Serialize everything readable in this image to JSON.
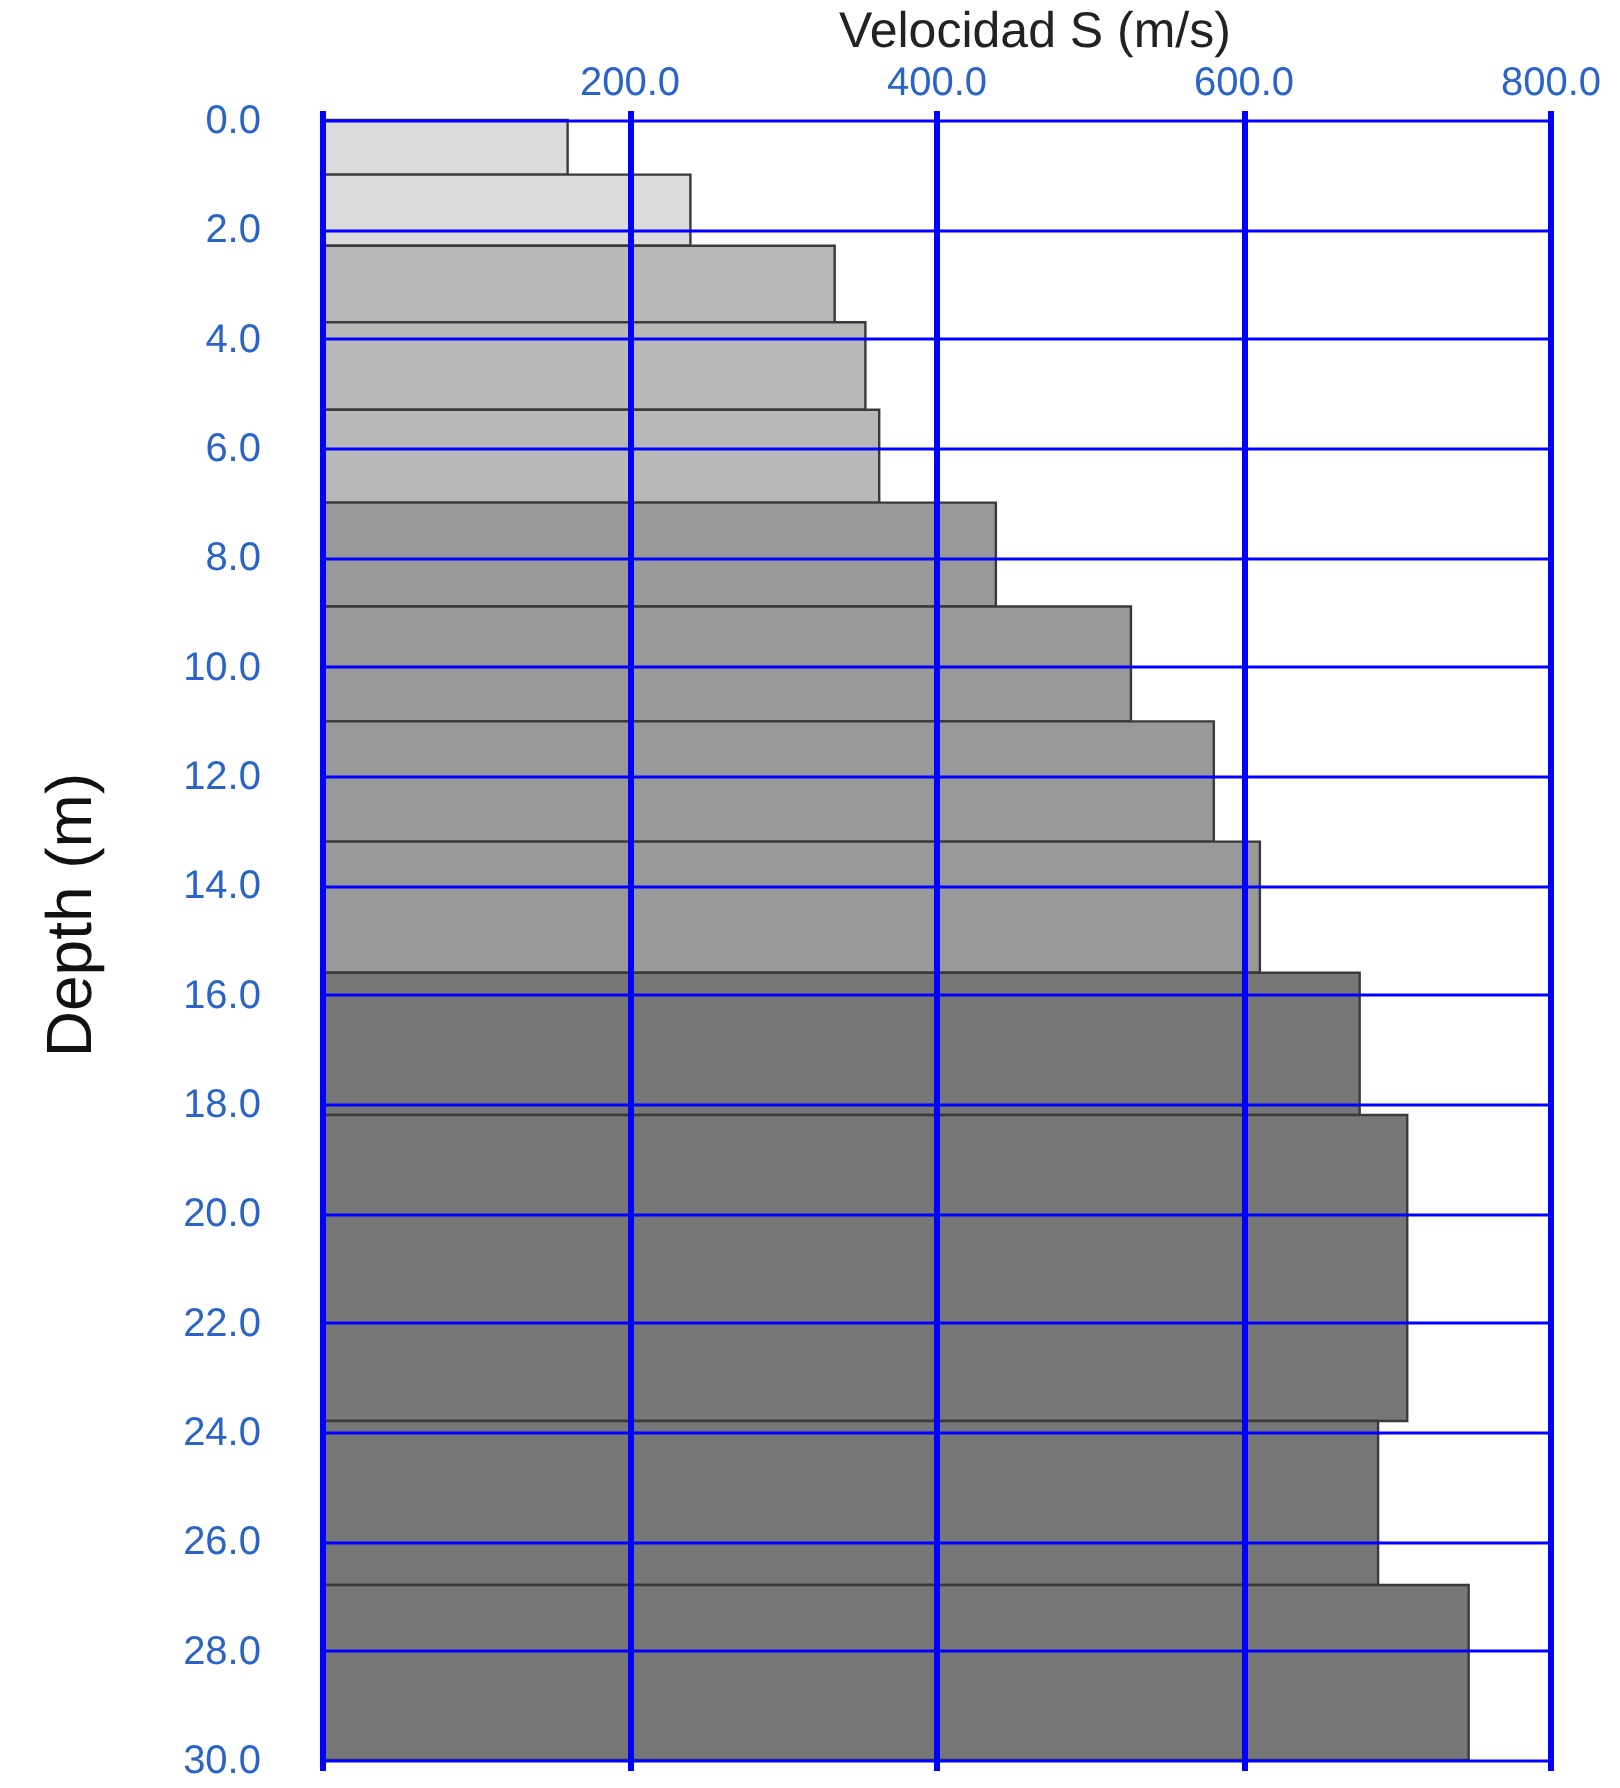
{
  "chart_data": {
    "type": "histogram",
    "orientation": "horizontal",
    "xlabel": "Velocidad S (m/s)",
    "ylabel": "Depth (m)",
    "bins": [
      0,
      1.0,
      2.3,
      3.7,
      5.3,
      7.0,
      8.9,
      11.0,
      13.2,
      15.6,
      18.2,
      23.8,
      26.8,
      30
    ],
    "values": [
      160,
      240,
      334,
      354,
      363,
      439,
      527,
      581,
      611,
      676,
      707,
      688,
      747
    ],
    "colors": [
      "#dbdbdb",
      "#dbdbdb",
      "#b8b8b8",
      "#b8b8b8",
      "#b8b8b8",
      "#999999",
      "#999999",
      "#999999",
      "#999999",
      "#777777",
      "#777777",
      "#777777",
      "#777777"
    ],
    "xlim": [
      0,
      800
    ],
    "xticks": [
      {
        "value": 0,
        "label": null
      },
      {
        "value": 200,
        "label": "200.0"
      },
      {
        "value": 400,
        "label": "400.0"
      },
      {
        "value": 600,
        "label": "600.0"
      },
      {
        "value": 800,
        "label": "800.0"
      }
    ],
    "ylim": [
      30,
      0
    ],
    "yticks": [
      {
        "value": 0,
        "label": "0.0"
      },
      {
        "value": 2,
        "label": "2.0"
      },
      {
        "value": 4,
        "label": "4.0"
      },
      {
        "value": 6,
        "label": "6.0"
      },
      {
        "value": 8,
        "label": "8.0"
      },
      {
        "value": 10,
        "label": "10.0"
      },
      {
        "value": 12,
        "label": "12.0"
      },
      {
        "value": 14,
        "label": "14.0"
      },
      {
        "value": 16,
        "label": "16.0"
      },
      {
        "value": 18,
        "label": "18.0"
      },
      {
        "value": 20,
        "label": "20.0"
      },
      {
        "value": 22,
        "label": "22.0"
      },
      {
        "value": 24,
        "label": "24.0"
      },
      {
        "value": 26,
        "label": "26.0"
      },
      {
        "value": 28,
        "label": "28.0"
      },
      {
        "value": 30,
        "label": "30.0"
      }
    ],
    "grid": true
  }
}
